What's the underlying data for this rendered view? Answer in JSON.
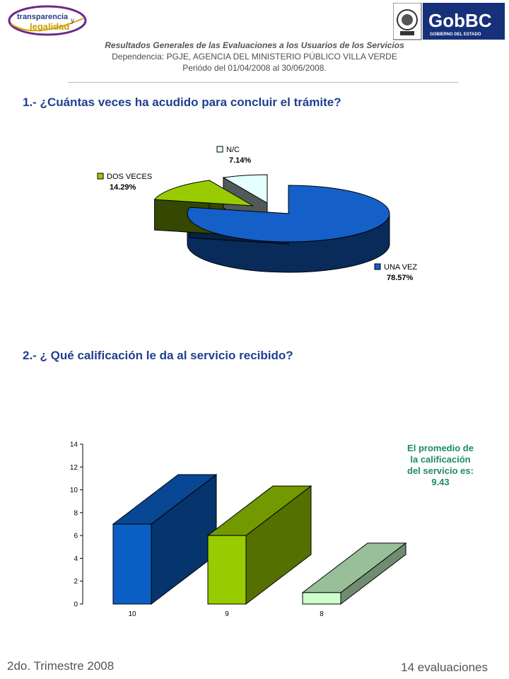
{
  "header": {
    "logo_left_line1": "transparencia",
    "logo_left_line2": "legalidad",
    "logo_left_y": "y",
    "logo_right_title": "GobBC",
    "logo_right_sub": "GOBIERNO DEL ESTADO",
    "title": "Resultados Generales de las Evaluaciones a los Usuarios de los Servicios",
    "dependency": "Dependencia: PGJE, AGENCIA DEL MINISTERIO  PÚBLICO VILLA VERDE",
    "period": "Periódo del 01/04/2008 al 30/06/2008."
  },
  "question1": "1.- ¿Cuántas veces ha acudido para concluir el trámite?",
  "question2": "2.- ¿ Qué calificación le da al servicio recibido?",
  "average_note": {
    "line1": "El promedio de",
    "line2": "la calificación",
    "line3": "del servicio es:",
    "value": "9.43"
  },
  "footer": {
    "left": "2do. Trimestre 2008",
    "right": "14 evaluaciones"
  },
  "chart_data": [
    {
      "type": "pie",
      "slices": [
        {
          "label": "UNA VEZ",
          "value": 78.57,
          "value_label": "78.57%",
          "color": "#1560c8"
        },
        {
          "label": "DOS VECES",
          "value": 14.29,
          "value_label": "14.29%",
          "color": "#99cc00"
        },
        {
          "label": "N/C",
          "value": 7.14,
          "value_label": "7.14%",
          "color": "#e6ffff"
        }
      ]
    },
    {
      "type": "bar",
      "categories": [
        "10",
        "9",
        "8"
      ],
      "values": [
        7,
        6,
        1
      ],
      "colors": [
        "#0a5fc4",
        "#99cc00",
        "#ccffcc"
      ],
      "ylim": [
        0,
        14
      ],
      "yticks": [
        0,
        2,
        4,
        6,
        8,
        10,
        12,
        14
      ]
    }
  ]
}
